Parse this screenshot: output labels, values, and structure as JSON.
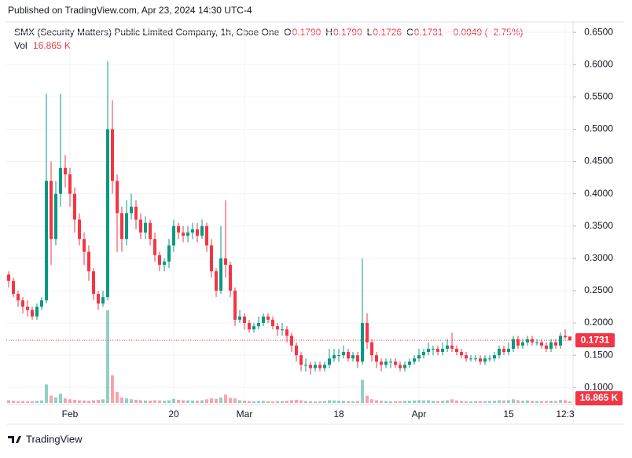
{
  "published": "Published on TradingView.com, Apr 23, 2024 14:30 UTC-4",
  "footer": "TradingView",
  "chart_data": {
    "type": "candlestick",
    "title": "SMX (Security Matters) Public Limited Company, 1h, Cboe One",
    "legend": {
      "open_label": "O",
      "open": "0.1790",
      "high_label": "H",
      "high": "0.1790",
      "low_label": "L",
      "low": "0.1726",
      "close_label": "C",
      "close": "0.1731",
      "change": "−0.0049 (−2.75%)",
      "volume_label": "Vol",
      "volume": "16.865 K"
    },
    "up_color": "#089981",
    "down_color": "#f23645",
    "ylim": [
      0.076,
      0.666
    ],
    "yticks": [
      {
        "value": 0.1,
        "label": "0.1000"
      },
      {
        "value": 0.15,
        "label": "0.1500"
      },
      {
        "value": 0.2,
        "label": "0.2000"
      },
      {
        "value": 0.25,
        "label": "0.2500"
      },
      {
        "value": 0.3,
        "label": "0.3000"
      },
      {
        "value": 0.35,
        "label": "0.3500"
      },
      {
        "value": 0.4,
        "label": "0.4000"
      },
      {
        "value": 0.45,
        "label": "0.4500"
      },
      {
        "value": 0.5,
        "label": "0.5000"
      },
      {
        "value": 0.55,
        "label": "0.5500"
      },
      {
        "value": 0.6,
        "label": "0.6000"
      },
      {
        "value": 0.65,
        "label": "0.6500"
      }
    ],
    "grid": true,
    "last_price": {
      "value": 0.1731,
      "label": "0.1731"
    },
    "last_volume": {
      "value": 16.865,
      "label": "16.865 K"
    },
    "categories": [
      null,
      null,
      null,
      null,
      null,
      null,
      null,
      null,
      null,
      null,
      null,
      null,
      null,
      "Feb",
      null,
      null,
      null,
      null,
      null,
      null,
      null,
      null,
      null,
      null,
      null,
      null,
      null,
      null,
      null,
      null,
      null,
      null,
      null,
      null,
      null,
      "20",
      null,
      null,
      null,
      null,
      null,
      null,
      null,
      null,
      null,
      null,
      null,
      null,
      null,
      null,
      "Mar",
      null,
      null,
      null,
      null,
      null,
      null,
      null,
      null,
      null,
      null,
      null,
      null,
      null,
      null,
      null,
      null,
      null,
      null,
      null,
      "18",
      null,
      null,
      null,
      null,
      null,
      null,
      null,
      null,
      null,
      null,
      null,
      null,
      null,
      null,
      null,
      null,
      "Apr",
      null,
      null,
      null,
      null,
      null,
      null,
      null,
      null,
      null,
      null,
      null,
      null,
      null,
      null,
      null,
      null,
      null,
      null,
      "15",
      null,
      null,
      null,
      null,
      null,
      null,
      null,
      null,
      null,
      null,
      null,
      "12:3",
      null
    ],
    "open": [
      0.275,
      0.265,
      0.245,
      0.235,
      0.225,
      0.22,
      0.21,
      0.225,
      0.235,
      0.42,
      0.33,
      0.4,
      0.44,
      0.43,
      0.4,
      0.36,
      0.33,
      0.31,
      0.28,
      0.245,
      0.23,
      0.24,
      0.5,
      0.42,
      0.37,
      0.33,
      0.37,
      0.38,
      0.36,
      0.34,
      0.355,
      0.33,
      0.305,
      0.29,
      0.295,
      0.32,
      0.35,
      0.34,
      0.335,
      0.34,
      0.345,
      0.335,
      0.35,
      0.32,
      0.28,
      0.25,
      0.3,
      0.29,
      0.25,
      0.205,
      0.21,
      0.2,
      0.19,
      0.195,
      0.2,
      0.21,
      0.205,
      0.195,
      0.19,
      0.19,
      0.18,
      0.165,
      0.15,
      0.135,
      0.135,
      0.13,
      0.135,
      0.13,
      0.135,
      0.145,
      0.15,
      0.15,
      0.155,
      0.145,
      0.15,
      0.14,
      0.2,
      0.17,
      0.15,
      0.14,
      0.135,
      0.14,
      0.14,
      0.135,
      0.13,
      0.135,
      0.14,
      0.145,
      0.15,
      0.155,
      0.16,
      0.16,
      0.155,
      0.16,
      0.165,
      0.16,
      0.155,
      0.15,
      0.145,
      0.145,
      0.145,
      0.14,
      0.145,
      0.145,
      0.15,
      0.16,
      0.155,
      0.16,
      0.175,
      0.165,
      0.17,
      0.175,
      0.17,
      0.17,
      0.165,
      0.16,
      0.17,
      0.165,
      0.18,
      0.179
    ],
    "high": [
      0.28,
      0.27,
      0.25,
      0.24,
      0.235,
      0.225,
      0.23,
      0.24,
      0.555,
      0.45,
      0.42,
      0.555,
      0.46,
      0.44,
      0.41,
      0.37,
      0.34,
      0.32,
      0.285,
      0.25,
      0.25,
      0.605,
      0.545,
      0.43,
      0.38,
      0.39,
      0.4,
      0.39,
      0.37,
      0.365,
      0.36,
      0.34,
      0.31,
      0.3,
      0.33,
      0.36,
      0.355,
      0.35,
      0.35,
      0.355,
      0.355,
      0.36,
      0.355,
      0.33,
      0.285,
      0.35,
      0.39,
      0.295,
      0.255,
      0.22,
      0.215,
      0.205,
      0.2,
      0.21,
      0.215,
      0.215,
      0.21,
      0.2,
      0.2,
      0.195,
      0.185,
      0.17,
      0.155,
      0.145,
      0.14,
      0.14,
      0.14,
      0.14,
      0.16,
      0.16,
      0.16,
      0.165,
      0.16,
      0.155,
      0.155,
      0.3,
      0.215,
      0.175,
      0.155,
      0.145,
      0.145,
      0.145,
      0.145,
      0.14,
      0.14,
      0.145,
      0.15,
      0.16,
      0.16,
      0.17,
      0.165,
      0.165,
      0.17,
      0.175,
      0.185,
      0.165,
      0.16,
      0.155,
      0.15,
      0.15,
      0.15,
      0.15,
      0.15,
      0.155,
      0.165,
      0.165,
      0.17,
      0.18,
      0.18,
      0.175,
      0.18,
      0.18,
      0.175,
      0.175,
      0.17,
      0.175,
      0.175,
      0.185,
      0.19,
      0.179
    ],
    "low": [
      0.255,
      0.24,
      0.225,
      0.215,
      0.21,
      0.205,
      0.205,
      0.22,
      0.23,
      0.29,
      0.32,
      0.38,
      0.41,
      0.38,
      0.34,
      0.32,
      0.29,
      0.265,
      0.235,
      0.22,
      0.225,
      0.235,
      0.4,
      0.31,
      0.31,
      0.32,
      0.36,
      0.345,
      0.33,
      0.33,
      0.32,
      0.295,
      0.28,
      0.28,
      0.285,
      0.31,
      0.33,
      0.325,
      0.325,
      0.33,
      0.325,
      0.33,
      0.31,
      0.27,
      0.24,
      0.245,
      0.27,
      0.24,
      0.195,
      0.2,
      0.19,
      0.185,
      0.185,
      0.19,
      0.195,
      0.2,
      0.19,
      0.18,
      0.18,
      0.17,
      0.155,
      0.14,
      0.125,
      0.125,
      0.12,
      0.125,
      0.125,
      0.125,
      0.13,
      0.14,
      0.14,
      0.145,
      0.14,
      0.14,
      0.13,
      0.135,
      0.16,
      0.14,
      0.13,
      0.125,
      0.13,
      0.13,
      0.13,
      0.125,
      0.125,
      0.13,
      0.135,
      0.14,
      0.145,
      0.15,
      0.15,
      0.15,
      0.15,
      0.155,
      0.155,
      0.15,
      0.145,
      0.14,
      0.14,
      0.14,
      0.135,
      0.135,
      0.14,
      0.14,
      0.145,
      0.15,
      0.15,
      0.155,
      0.16,
      0.16,
      0.165,
      0.165,
      0.165,
      0.16,
      0.155,
      0.155,
      0.16,
      0.16,
      0.175,
      0.1726
    ],
    "close": [
      0.265,
      0.245,
      0.235,
      0.225,
      0.22,
      0.21,
      0.225,
      0.235,
      0.42,
      0.33,
      0.4,
      0.44,
      0.43,
      0.4,
      0.36,
      0.33,
      0.31,
      0.28,
      0.245,
      0.23,
      0.24,
      0.5,
      0.42,
      0.37,
      0.33,
      0.37,
      0.38,
      0.36,
      0.34,
      0.355,
      0.33,
      0.305,
      0.29,
      0.295,
      0.32,
      0.35,
      0.34,
      0.335,
      0.34,
      0.345,
      0.335,
      0.35,
      0.32,
      0.28,
      0.25,
      0.3,
      0.29,
      0.25,
      0.205,
      0.21,
      0.2,
      0.19,
      0.195,
      0.2,
      0.21,
      0.205,
      0.195,
      0.19,
      0.19,
      0.18,
      0.165,
      0.15,
      0.135,
      0.135,
      0.13,
      0.135,
      0.13,
      0.135,
      0.145,
      0.15,
      0.15,
      0.155,
      0.145,
      0.15,
      0.14,
      0.2,
      0.17,
      0.15,
      0.14,
      0.135,
      0.14,
      0.14,
      0.135,
      0.13,
      0.135,
      0.14,
      0.145,
      0.15,
      0.155,
      0.16,
      0.16,
      0.155,
      0.16,
      0.165,
      0.16,
      0.155,
      0.15,
      0.145,
      0.145,
      0.145,
      0.14,
      0.145,
      0.145,
      0.15,
      0.16,
      0.155,
      0.16,
      0.175,
      0.165,
      0.17,
      0.175,
      0.17,
      0.17,
      0.165,
      0.16,
      0.17,
      0.165,
      0.18,
      0.178,
      0.1731
    ],
    "volume": [
      30,
      25,
      20,
      22,
      18,
      20,
      24,
      28,
      200,
      80,
      60,
      100,
      50,
      40,
      35,
      30,
      28,
      25,
      30,
      35,
      40,
      1000,
      300,
      120,
      60,
      50,
      40,
      35,
      30,
      28,
      26,
      30,
      28,
      25,
      30,
      45,
      35,
      30,
      28,
      26,
      25,
      30,
      40,
      50,
      45,
      60,
      90,
      55,
      50,
      30,
      25,
      22,
      20,
      22,
      24,
      20,
      18,
      20,
      22,
      25,
      30,
      35,
      30,
      22,
      20,
      18,
      20,
      22,
      30,
      28,
      25,
      24,
      22,
      20,
      22,
      250,
      80,
      40,
      30,
      25,
      22,
      20,
      20,
      22,
      24,
      25,
      28,
      30,
      28,
      30,
      25,
      22,
      24,
      30,
      40,
      28,
      22,
      20,
      18,
      20,
      22,
      20,
      22,
      25,
      30,
      28,
      30,
      40,
      30,
      25,
      28,
      24,
      22,
      20,
      22,
      25,
      22,
      35,
      30,
      16.865
    ]
  }
}
